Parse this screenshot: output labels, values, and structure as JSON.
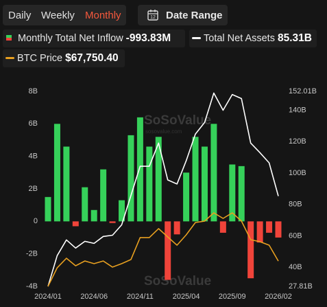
{
  "tabs": [
    "Daily",
    "Weekly",
    "Monthly"
  ],
  "active_tab": 2,
  "date_range": "Date Range",
  "legend": [
    {
      "name": "Monthly Total Net Inflow",
      "value_label": "-993.83M"
    },
    {
      "name": "Total Net Assets",
      "value_label": "85.31B"
    },
    {
      "name": "BTC Price",
      "value_label": "$67,750.40"
    }
  ],
  "chart_data": {
    "type": "bar-line",
    "watermark": "SoSoValue",
    "watermark_sub": "sosovalue.com",
    "categories": [
      "2024/01",
      null,
      null,
      null,
      null,
      "2024/06",
      null,
      null,
      null,
      null,
      "2024/11",
      null,
      null,
      null,
      null,
      "2025/04",
      null,
      null,
      null,
      null,
      "2025/09",
      null,
      null,
      null,
      null,
      "2026/02"
    ],
    "ylim": [
      -4,
      8
    ],
    "yticks": [
      {
        "value": 8,
        "label": "8B"
      },
      {
        "value": 6,
        "label": "6B"
      },
      {
        "value": 4,
        "label": "4B"
      },
      {
        "value": 2,
        "label": "2B"
      },
      0,
      {
        "value": -2,
        "label": "-2B"
      },
      {
        "value": -4,
        "label": "-4B"
      }
    ],
    "y2lim": [
      27.81,
      152.01
    ],
    "y2ticks": [
      {
        "value": 152.01,
        "label": "152.01B"
      },
      {
        "value": 140,
        "label": "140B"
      },
      {
        "value": 120,
        "label": "120B"
      },
      {
        "value": 100,
        "label": "100B"
      },
      {
        "value": 80,
        "label": "80B"
      },
      {
        "value": 60,
        "label": "60B"
      },
      {
        "value": 40,
        "label": "40B"
      },
      {
        "value": 27.81,
        "label": "27.81B"
      }
    ],
    "series": [
      {
        "name": "Monthly Total Net Inflow",
        "type": "bar",
        "positive_color": "#36d15a",
        "negative_color": "#f0443a",
        "values": [
          1.5,
          6.0,
          4.6,
          -0.3,
          2.1,
          0.7,
          3.2,
          -0.1,
          1.3,
          5.3,
          6.4,
          4.6,
          5.2,
          -3.6,
          -0.8,
          3.0,
          5.2,
          4.6,
          6.0,
          -0.7,
          3.5,
          3.4,
          -3.5,
          -1.3,
          -0.7,
          -0.99383
        ]
      },
      {
        "name": "Total Net Assets",
        "type": "line",
        "axis": "y2",
        "color": "#ffffff",
        "values": [
          27.81,
          47.4,
          57.4,
          52.2,
          56.5,
          55.2,
          59.6,
          60.4,
          67.0,
          85.7,
          104.3,
          104.3,
          119.1,
          95.6,
          93.0,
          107.8,
          124.8,
          132.2,
          150.9,
          140.0,
          150.0,
          147.4,
          119.1,
          113.0,
          106.5,
          85.31
        ]
      },
      {
        "name": "BTC Price",
        "type": "line",
        "axis": "hidden",
        "color": "#e8a020",
        "values": [
          42500,
          61000,
          70500,
          63000,
          67800,
          65100,
          67800,
          61700,
          65100,
          69200,
          91100,
          91100,
          100000,
          91700,
          83500,
          93800,
          106100,
          107500,
          115700,
          110200,
          115700,
          107500,
          89000,
          87000,
          83500,
          67750.4
        ]
      }
    ]
  }
}
